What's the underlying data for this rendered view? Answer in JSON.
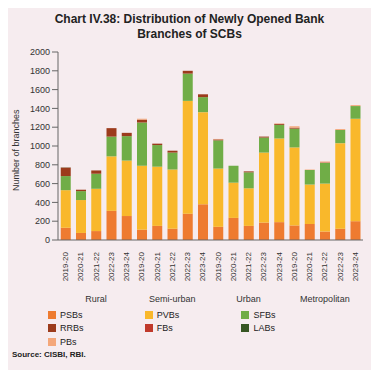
{
  "chart_data": {
    "type": "bar",
    "stacked": true,
    "title": "Chart IV.38: Distribution of Newly Opened Bank Branches of SCBs",
    "source": "Source: CISBI, RBI.",
    "y_label": "Number of branches",
    "groups": [
      "Rural",
      "Semi-urban",
      "Urban",
      "Metropolitan"
    ],
    "categories": [
      "2019-20",
      "2020-21",
      "2021-22",
      "2022-23",
      "2023-24",
      "2019-20",
      "2020-21",
      "2021-22",
      "2022-23",
      "2023-24",
      "2019-20",
      "2020-21",
      "2021-22",
      "2022-23",
      "2023-24",
      "2019-20",
      "2020-21",
      "2021-22",
      "2022-23",
      "2023-24"
    ],
    "ylim": [
      0,
      2000
    ],
    "yticks": [
      0,
      200,
      400,
      600,
      800,
      1000,
      1200,
      1400,
      1600,
      1800,
      2000
    ],
    "grid": false,
    "legend": "bottom",
    "series": [
      {
        "name": "PSBs",
        "color": "#EE7B30",
        "values": [
          130,
          75,
          95,
          310,
          255,
          110,
          150,
          120,
          280,
          380,
          140,
          235,
          150,
          185,
          190,
          155,
          170,
          90,
          120,
          200
        ]
      },
      {
        "name": "PVBs",
        "color": "#F9B82B",
        "values": [
          400,
          350,
          450,
          580,
          590,
          680,
          630,
          630,
          1200,
          980,
          620,
          375,
          400,
          745,
          890,
          830,
          420,
          510,
          910,
          1090
        ]
      },
      {
        "name": "SFBs",
        "color": "#70AD47",
        "values": [
          150,
          95,
          160,
          210,
          260,
          460,
          230,
          180,
          290,
          160,
          300,
          180,
          170,
          160,
          145,
          200,
          155,
          220,
          140,
          135
        ]
      },
      {
        "name": "RRBs",
        "color": "#9C3B1C",
        "values": [
          90,
          15,
          35,
          90,
          35,
          30,
          15,
          20,
          30,
          30,
          10,
          0,
          10,
          10,
          10,
          10,
          0,
          5,
          0,
          0
        ]
      },
      {
        "name": "FBs",
        "color": "#C0392B",
        "values": [
          0,
          0,
          0,
          0,
          0,
          0,
          0,
          0,
          0,
          0,
          0,
          0,
          0,
          0,
          0,
          0,
          0,
          0,
          0,
          0
        ]
      },
      {
        "name": "LABs",
        "color": "#375623",
        "values": [
          2,
          0,
          0,
          0,
          0,
          0,
          0,
          0,
          0,
          0,
          0,
          0,
          0,
          0,
          0,
          0,
          0,
          0,
          0,
          0
        ]
      },
      {
        "name": "PBs",
        "color": "#F4A77A",
        "values": [
          0,
          0,
          0,
          0,
          0,
          10,
          0,
          0,
          0,
          0,
          5,
          0,
          0,
          0,
          5,
          15,
          5,
          10,
          10,
          10
        ]
      }
    ]
  }
}
